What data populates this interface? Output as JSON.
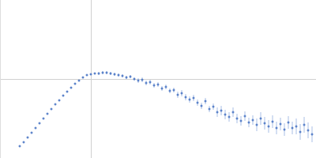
{
  "chart_data": {
    "type": "scatter",
    "color": "#3d6bbf",
    "grid": true,
    "tick_labels": false,
    "xlim": [
      0,
      4
    ],
    "xticks": [
      1.15
    ],
    "ylim": [
      0,
      2
    ],
    "yticks": [
      1
    ],
    "x": [
      0.25,
      0.3,
      0.35,
      0.4,
      0.45,
      0.5,
      0.55,
      0.6,
      0.65,
      0.7,
      0.75,
      0.8,
      0.85,
      0.9,
      0.95,
      1.0,
      1.05,
      1.1,
      1.15,
      1.2,
      1.25,
      1.3,
      1.35,
      1.4,
      1.45,
      1.5,
      1.55,
      1.6,
      1.65,
      1.7,
      1.75,
      1.8,
      1.85,
      1.9,
      1.95,
      2.0,
      2.05,
      2.1,
      2.15,
      2.2,
      2.25,
      2.3,
      2.35,
      2.4,
      2.45,
      2.5,
      2.55,
      2.6,
      2.65,
      2.7,
      2.75,
      2.8,
      2.85,
      2.9,
      2.95,
      3.0,
      3.05,
      3.1,
      3.15,
      3.2,
      3.25,
      3.3,
      3.35,
      3.4,
      3.45,
      3.5,
      3.55,
      3.6,
      3.65,
      3.7,
      3.75,
      3.8,
      3.85,
      3.9,
      3.95
    ],
    "values": [
      0.15,
      0.2,
      0.26,
      0.32,
      0.38,
      0.44,
      0.5,
      0.56,
      0.62,
      0.68,
      0.73,
      0.79,
      0.84,
      0.89,
      0.94,
      0.98,
      1.02,
      1.05,
      1.06,
      1.07,
      1.07,
      1.08,
      1.08,
      1.07,
      1.06,
      1.05,
      1.04,
      1.02,
      1.03,
      1.0,
      0.98,
      0.99,
      0.95,
      0.96,
      0.92,
      0.93,
      0.88,
      0.9,
      0.85,
      0.86,
      0.8,
      0.82,
      0.77,
      0.74,
      0.76,
      0.7,
      0.66,
      0.72,
      0.62,
      0.65,
      0.58,
      0.6,
      0.55,
      0.52,
      0.58,
      0.5,
      0.47,
      0.53,
      0.45,
      0.48,
      0.42,
      0.5,
      0.44,
      0.4,
      0.46,
      0.38,
      0.43,
      0.36,
      0.45,
      0.38,
      0.4,
      0.33,
      0.42,
      0.35,
      0.3
    ],
    "errors": [
      0.005,
      0.005,
      0.005,
      0.005,
      0.005,
      0.005,
      0.005,
      0.005,
      0.005,
      0.005,
      0.01,
      0.01,
      0.01,
      0.01,
      0.01,
      0.01,
      0.01,
      0.01,
      0.01,
      0.01,
      0.02,
      0.02,
      0.02,
      0.02,
      0.02,
      0.02,
      0.02,
      0.02,
      0.02,
      0.02,
      0.03,
      0.03,
      0.03,
      0.03,
      0.03,
      0.03,
      0.03,
      0.03,
      0.03,
      0.03,
      0.04,
      0.04,
      0.04,
      0.04,
      0.04,
      0.04,
      0.04,
      0.04,
      0.04,
      0.04,
      0.06,
      0.06,
      0.06,
      0.06,
      0.06,
      0.06,
      0.06,
      0.06,
      0.06,
      0.06,
      0.08,
      0.08,
      0.08,
      0.08,
      0.08,
      0.08,
      0.08,
      0.08,
      0.08,
      0.08,
      0.1,
      0.1,
      0.1,
      0.1,
      0.1
    ]
  }
}
